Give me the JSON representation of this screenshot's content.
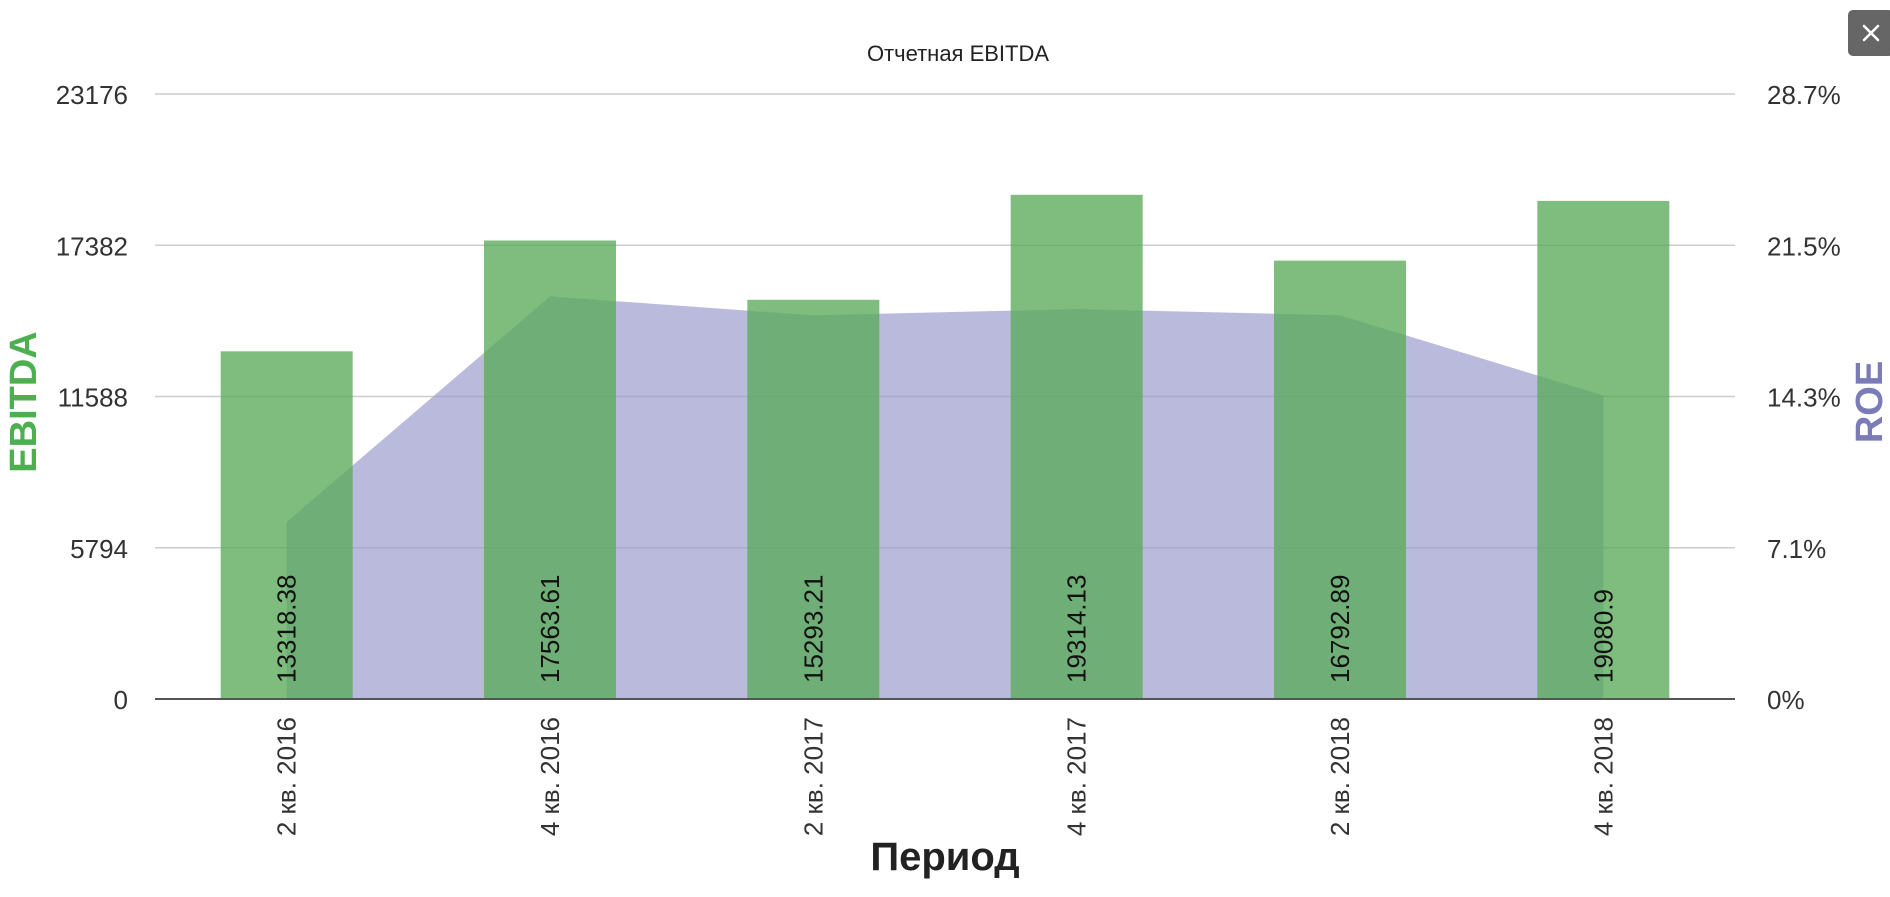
{
  "close_icon": "close-icon",
  "chart_data": {
    "type": "bar",
    "title": "Отчетная EBITDA",
    "xlabel": "Период",
    "ylabel": "EBITDA",
    "y2label": "ROE",
    "categories": [
      "2 кв. 2016",
      "4 кв. 2016",
      "2 кв. 2017",
      "4 кв. 2017",
      "2 кв. 2018",
      "4 кв. 2018"
    ],
    "series": [
      {
        "name": "EBITDA",
        "type": "bar",
        "axis": "left",
        "color": "#5aab5a",
        "values": [
          13318.38,
          17563.61,
          15293.21,
          19314.13,
          16792.89,
          19080.9
        ],
        "value_labels": [
          "13318.38",
          "17563.61",
          "15293.21",
          "19314.13",
          "16792.89",
          "19080.9"
        ]
      },
      {
        "name": "ROE",
        "type": "area",
        "axis": "right",
        "color": "#9999cc",
        "values": [
          8.4,
          19.1,
          18.2,
          18.5,
          18.2,
          14.4
        ]
      }
    ],
    "ylim": [
      0,
      23176
    ],
    "y_ticks": [
      "0",
      "5794",
      "11588",
      "17382",
      "23176"
    ],
    "y2lim": [
      0,
      28.7
    ],
    "y2_ticks": [
      "0%",
      "7.1%",
      "14.3%",
      "21.5%",
      "28.7%"
    ],
    "grid": true,
    "legend": "none"
  }
}
